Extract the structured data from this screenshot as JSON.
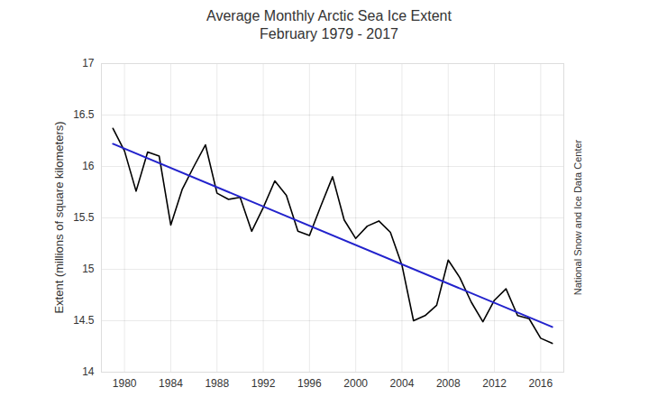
{
  "chart_data": {
    "type": "line",
    "title": "Average Monthly Arctic Sea Ice Extent",
    "subtitle": "February 1979 - 2017",
    "y_label": "Extent (millions of square kilometers)",
    "annotation": "National Snow and Ice Data Center",
    "x": [
      1979,
      1980,
      1981,
      1982,
      1983,
      1984,
      1985,
      1986,
      1987,
      1988,
      1989,
      1990,
      1991,
      1992,
      1993,
      1994,
      1995,
      1996,
      1997,
      1998,
      1999,
      2000,
      2001,
      2002,
      2003,
      2004,
      2005,
      2006,
      2007,
      2008,
      2009,
      2010,
      2011,
      2012,
      2013,
      2014,
      2015,
      2016,
      2017
    ],
    "series": [
      {
        "color": "#000000",
        "line_style": "solid",
        "values": [
          16.37,
          16.15,
          15.76,
          16.14,
          16.1,
          15.43,
          15.78,
          16.0,
          16.21,
          15.74,
          15.68,
          15.7,
          15.37,
          15.6,
          15.86,
          15.72,
          15.37,
          15.33,
          15.62,
          15.9,
          15.48,
          15.3,
          15.42,
          15.47,
          15.36,
          15.04,
          14.5,
          14.55,
          14.65,
          15.09,
          14.92,
          14.68,
          14.49,
          14.7,
          14.81,
          14.55,
          14.52,
          14.33,
          14.28
        ]
      },
      {
        "color": "#2222cc",
        "line_style": "solid",
        "x": [
          1979,
          2017
        ],
        "values": [
          16.22,
          14.44
        ]
      }
    ],
    "xlim": [
      1978,
      2018
    ],
    "xticks": [
      1980,
      1984,
      1988,
      1992,
      1996,
      2000,
      2004,
      2008,
      2012,
      2016
    ],
    "ylim": [
      14,
      17
    ],
    "yticks": [
      14,
      14.5,
      15,
      15.5,
      16,
      16.5,
      17
    ],
    "grid": true
  }
}
